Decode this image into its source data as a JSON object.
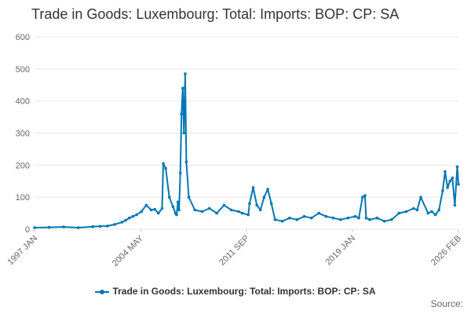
{
  "chart_data": {
    "type": "line",
    "title": "Trade in Goods: Luxembourg: Total: Imports: BOP: CP: SA",
    "xlabel": "",
    "ylabel": "",
    "ylim": [
      0,
      600
    ],
    "yticks": [
      "0",
      "100",
      "200",
      "300",
      "400",
      "500",
      "600"
    ],
    "xticks": [
      "1997 JAN",
      "2004 MAY",
      "2011 SEP",
      "2019 JAN",
      "2026 FEB"
    ],
    "xlim": [
      "1997-01",
      "2026-02"
    ],
    "grid": true,
    "legend_position": "bottom",
    "color": "#0077b4",
    "series": [
      {
        "name": "Trade in Goods: Luxembourg: Total: Imports: BOP: CP: SA",
        "x": [
          "1997-01",
          "1998-01",
          "1999-01",
          "2000-01",
          "2001-01",
          "2001-07",
          "2002-01",
          "2002-07",
          "2003-01",
          "2003-04",
          "2003-07",
          "2003-10",
          "2004-01",
          "2004-05",
          "2004-09",
          "2005-01",
          "2005-04",
          "2005-07",
          "2005-10",
          "2005-11",
          "2006-01",
          "2006-04",
          "2006-07",
          "2006-09",
          "2006-10",
          "2006-11",
          "2006-12",
          "2007-01",
          "2007-02",
          "2007-03",
          "2007-04",
          "2007-05",
          "2007-06",
          "2007-08",
          "2008-01",
          "2008-07",
          "2009-01",
          "2009-07",
          "2010-01",
          "2010-07",
          "2011-01",
          "2011-04",
          "2011-09",
          "2011-10",
          "2012-01",
          "2012-04",
          "2012-07",
          "2012-10",
          "2013-01",
          "2013-04",
          "2013-07",
          "2014-01",
          "2014-07",
          "2015-01",
          "2015-07",
          "2016-01",
          "2016-07",
          "2017-01",
          "2017-07",
          "2018-01",
          "2018-07",
          "2019-01",
          "2019-04",
          "2019-07",
          "2019-09",
          "2019-10",
          "2020-01",
          "2020-07",
          "2021-01",
          "2021-07",
          "2022-01",
          "2022-07",
          "2023-01",
          "2023-04",
          "2023-07",
          "2024-01",
          "2024-04",
          "2024-07",
          "2024-10",
          "2025-01",
          "2025-03",
          "2025-05",
          "2025-07",
          "2025-09",
          "2025-11",
          "2026-01",
          "2026-02"
        ],
        "values": [
          5,
          6,
          7,
          5,
          8,
          9,
          10,
          15,
          22,
          28,
          35,
          40,
          45,
          55,
          75,
          60,
          62,
          50,
          65,
          205,
          190,
          100,
          70,
          50,
          45,
          85,
          60,
          175,
          360,
          440,
          300,
          485,
          210,
          100,
          60,
          55,
          65,
          50,
          75,
          60,
          55,
          50,
          45,
          80,
          130,
          75,
          60,
          100,
          125,
          80,
          30,
          25,
          35,
          30,
          40,
          35,
          50,
          40,
          35,
          30,
          35,
          40,
          35,
          100,
          105,
          35,
          30,
          35,
          25,
          30,
          50,
          55,
          65,
          60,
          100,
          50,
          55,
          45,
          60,
          120,
          180,
          130,
          150,
          160,
          75,
          195,
          140
        ],
        "grid_labels_note": ""
      }
    ]
  },
  "legend": {
    "label": "Trade in Goods: Luxembourg: Total: Imports: BOP: CP: SA"
  },
  "source": {
    "label": "Source:"
  }
}
